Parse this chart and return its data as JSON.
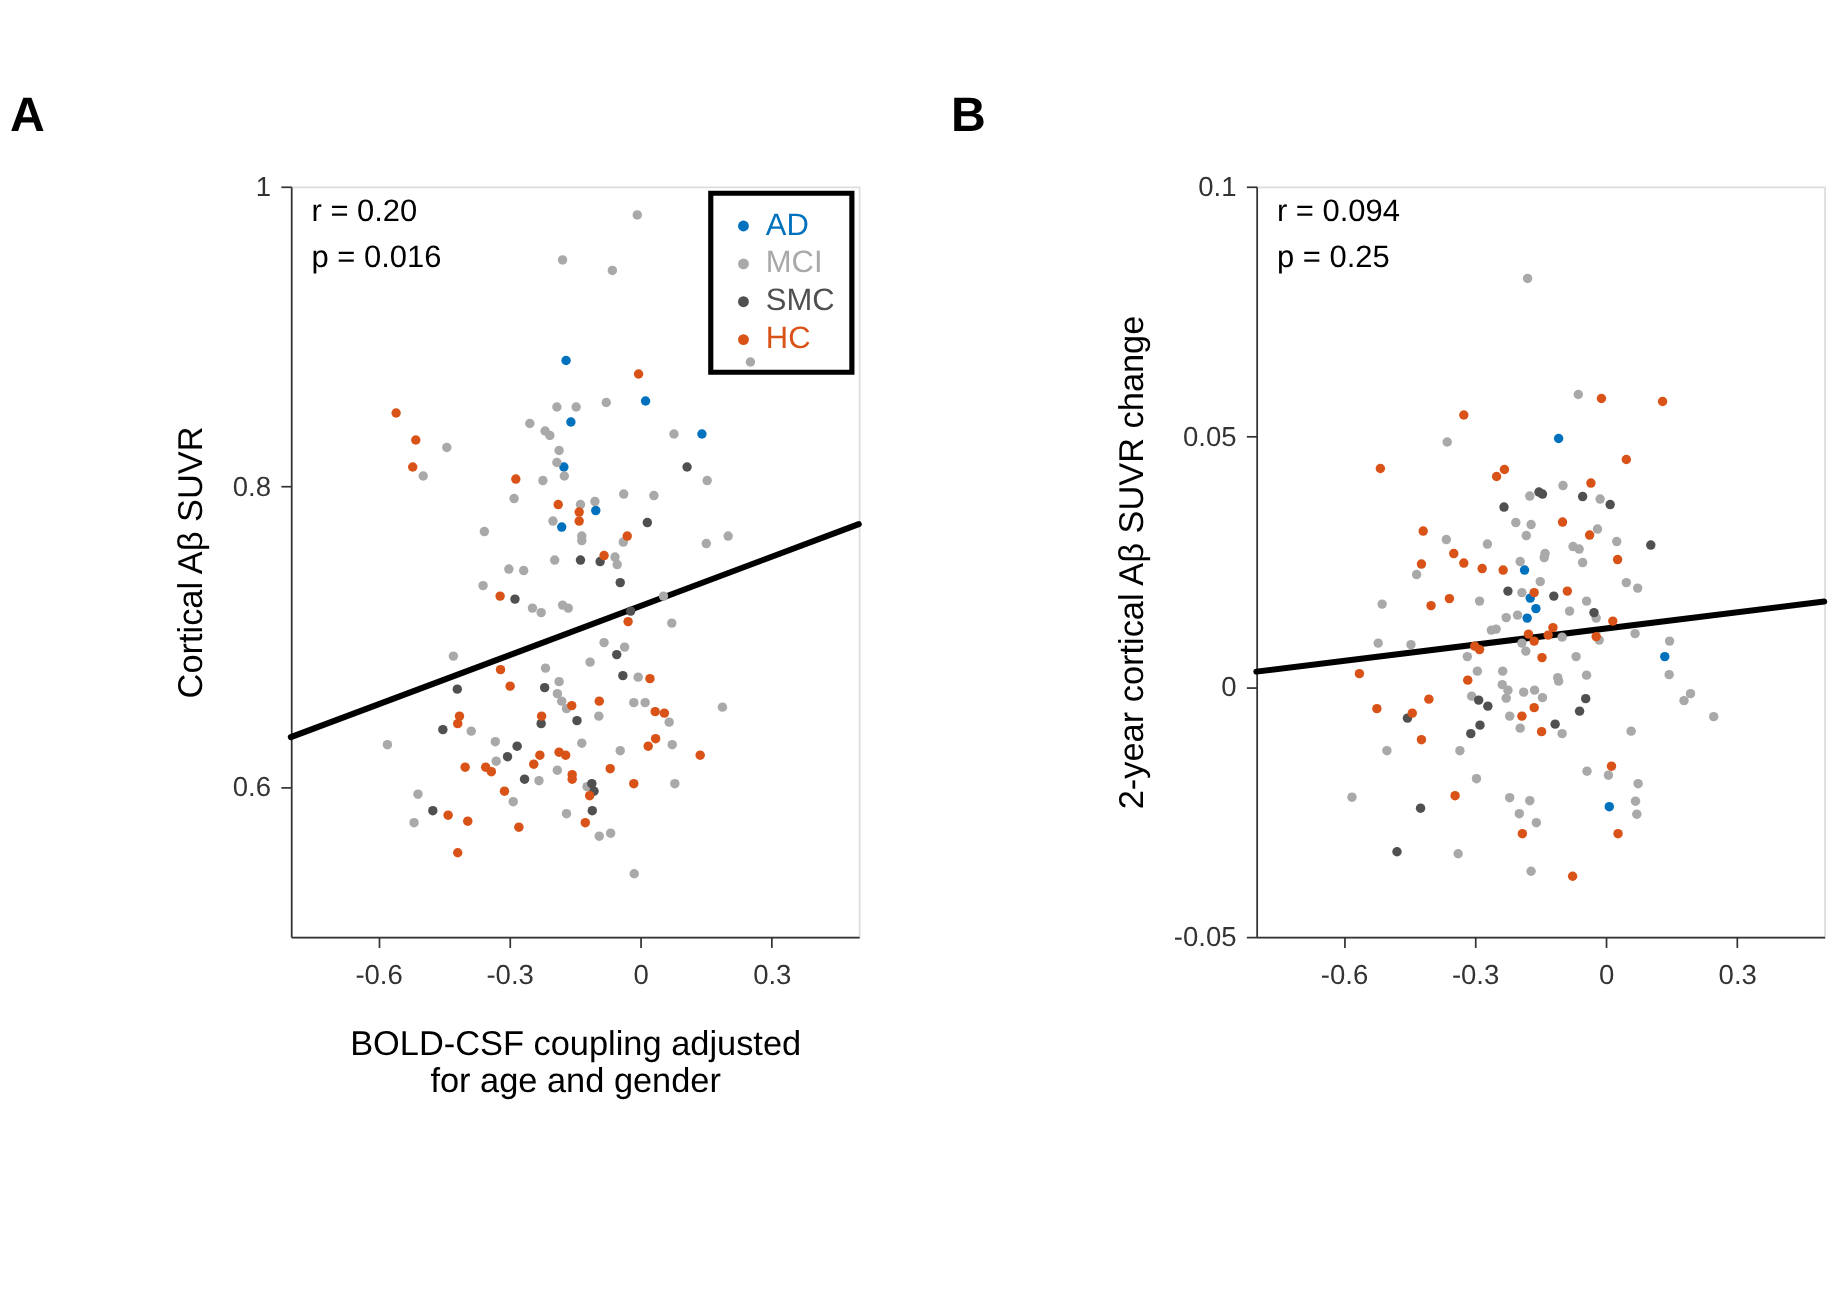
{
  "chart_data": [
    {
      "type": "scatter",
      "title": "A",
      "xlabel": "BOLD-CSF coupling adjusted for age and gender",
      "ylabel": "Cortical Aβ SUVR",
      "annotations": [
        "r = 0.20",
        "p = 0.016"
      ],
      "xlim": [
        -0.8,
        0.5
      ],
      "ylim": [
        0.5,
        1
      ],
      "xticks": [
        -0.6,
        -0.3,
        0,
        0.3
      ],
      "yticks": [
        0.6,
        0.8,
        1
      ],
      "grid": false,
      "legend": "top right",
      "marker": "circle",
      "series": [
        {
          "name": "AD",
          "color": "#0072bd",
          "x": [
            -0.17,
            0.012,
            -0.159,
            0.141,
            -0.175,
            -0.102,
            -0.18
          ],
          "values": [
            0.884,
            0.857,
            0.843,
            0.835,
            0.813,
            0.784,
            0.773
          ]
        },
        {
          "name": "MCI",
          "color": "#a9a9a9",
          "x": [
            -0.007,
            -0.178,
            -0.064,
            0.252,
            -0.191,
            -0.147,
            -0.078,
            -0.253,
            -0.218,
            -0.207,
            -0.443,
            -0.186,
            0.077,
            -0.191,
            -0.497,
            -0.174,
            0.153,
            -0.223,
            -0.289,
            -0.038,
            0.031,
            -0.137,
            -0.104,
            -0.2,
            -0.134,
            -0.134,
            -0.039,
            -0.357,
            0.151,
            0.201,
            -0.196,
            -0.058,
            -0.053,
            -0.301,
            -0.267,
            -0.36,
            -0.247,
            -0.227,
            -0.178,
            -0.165,
            0.053,
            0.072,
            -0.083,
            -0.036,
            -0.428,
            -0.115,
            -0.217,
            -0.005,
            -0.186,
            -0.19,
            -0.18,
            -0.169,
            -0.015,
            0.011,
            0.188,
            -0.387,
            -0.095,
            0.066,
            -0.579,
            -0.332,
            -0.33,
            -0.134,
            0.073,
            -0.046,
            -0.19,
            -0.232,
            -0.122,
            0.079,
            -0.509,
            -0.291,
            -0.518,
            -0.169,
            -0.094,
            -0.068,
            -0.014
          ],
          "values": [
            0.981,
            0.951,
            0.944,
            0.883,
            0.853,
            0.853,
            0.856,
            0.842,
            0.837,
            0.834,
            0.826,
            0.824,
            0.835,
            0.816,
            0.807,
            0.807,
            0.804,
            0.804,
            0.792,
            0.795,
            0.794,
            0.788,
            0.79,
            0.777,
            0.767,
            0.764,
            0.763,
            0.77,
            0.762,
            0.767,
            0.751,
            0.753,
            0.748,
            0.745,
            0.744,
            0.734,
            0.719,
            0.716,
            0.721,
            0.719,
            0.727,
            0.709,
            0.696,
            0.693,
            0.687,
            0.683,
            0.679,
            0.673,
            0.67,
            0.662,
            0.657,
            0.652,
            0.656,
            0.656,
            0.653,
            0.637,
            0.647,
            0.643,
            0.628,
            0.63,
            0.617,
            0.629,
            0.628,
            0.624,
            0.611,
            0.604,
            0.6,
            0.602,
            0.595,
            0.59,
            0.576,
            0.582,
            0.567,
            0.569,
            0.542
          ]
        },
        {
          "name": "SMC",
          "color": "#505050",
          "x": [
            0.107,
            0.016,
            -0.137,
            -0.092,
            -0.046,
            -0.287,
            -0.022,
            -0.054,
            -0.04,
            -0.419,
            -0.219,
            -0.452,
            -0.227,
            -0.145,
            -0.282,
            -0.304,
            -0.265,
            -0.111,
            -0.106,
            -0.475,
            -0.11
          ],
          "values": [
            0.813,
            0.776,
            0.751,
            0.75,
            0.736,
            0.725,
            0.717,
            0.688,
            0.674,
            0.665,
            0.666,
            0.638,
            0.642,
            0.644,
            0.627,
            0.62,
            0.605,
            0.602,
            0.597,
            0.584,
            0.584
          ]
        },
        {
          "name": "HC",
          "color": "#d95319",
          "x": [
            -0.004,
            -0.559,
            -0.514,
            -0.521,
            -0.285,
            -0.188,
            -0.14,
            -0.14,
            -0.03,
            -0.083,
            -0.321,
            -0.028,
            -0.32,
            0.022,
            -0.298,
            -0.157,
            -0.094,
            -0.414,
            -0.418,
            -0.226,
            0.034,
            0.055,
            -0.23,
            -0.186,
            -0.171,
            0.035,
            0.018,
            0.137,
            -0.401,
            -0.354,
            -0.341,
            -0.244,
            -0.156,
            -0.156,
            -0.069,
            -0.116,
            -0.015,
            -0.311,
            -0.44,
            -0.395,
            -0.278,
            -0.126,
            -0.418
          ],
          "values": [
            0.875,
            0.849,
            0.831,
            0.813,
            0.805,
            0.788,
            0.783,
            0.777,
            0.767,
            0.754,
            0.727,
            0.71,
            0.678,
            0.672,
            0.667,
            0.654,
            0.657,
            0.647,
            0.642,
            0.647,
            0.65,
            0.649,
            0.621,
            0.623,
            0.621,
            0.632,
            0.627,
            0.621,
            0.613,
            0.613,
            0.61,
            0.615,
            0.608,
            0.605,
            0.612,
            0.594,
            0.602,
            0.597,
            0.581,
            0.577,
            0.573,
            0.576,
            0.556
          ]
        },
        {
          "type": "line",
          "color": "#000000",
          "marker": "none",
          "line_style": "solid",
          "x": [
            -0.8,
            0.5
          ],
          "values": [
            0.633,
            0.775
          ]
        }
      ]
    },
    {
      "type": "scatter",
      "title": "B",
      "ylabel": "2-year cortical Aβ SUVR change",
      "annotations": [
        "r = 0.094",
        "p = 0.25"
      ],
      "xlim": [
        -0.8,
        0.5
      ],
      "ylim": [
        -0.05,
        0.1
      ],
      "xticks": [
        -0.6,
        -0.3,
        0,
        0.3
      ],
      "yticks": [
        -0.05,
        0,
        0.05,
        0.1
      ],
      "grid": false,
      "marker": "circle",
      "series": [
        {
          "color": "#0072bd",
          "x": [
            -0.108,
            -0.186,
            -0.173,
            -0.16,
            -0.18,
            0.135,
            0.008
          ],
          "values": [
            0.0496,
            0.0233,
            0.0177,
            0.0156,
            0.0137,
            0.006,
            -0.024
          ]
        },
        {
          "color": "#a9a9a9",
          "x": [
            -0.179,
            -0.063,
            -0.363,
            -0.174,
            -0.098,
            -0.013,
            -0.206,
            -0.171,
            -0.182,
            -0.019,
            -0.365,
            -0.271,
            0.025,
            -0.139,
            -0.141,
            -0.075,
            -0.061,
            -0.196,
            -0.053,
            -0.433,
            0.047,
            0.073,
            -0.192,
            -0.15,
            -0.202,
            -0.228,
            -0.512,
            -0.289,
            -0.044,
            -0.083,
            -0.022,
            -0.251,
            -0.262,
            -0.192,
            -0.183,
            -0.1,
            0.067,
            0.146,
            -0.015,
            -0.521,
            -0.446,
            -0.317,
            -0.068,
            -0.294,
            -0.236,
            -0.11,
            -0.108,
            -0.044,
            0.145,
            -0.237,
            -0.224,
            -0.228,
            -0.188,
            -0.163,
            -0.145,
            -0.307,
            0.194,
            0.179,
            0.247,
            -0.22,
            -0.196,
            -0.1,
            0.058,
            -0.501,
            -0.334,
            -0.043,
            0.006,
            -0.296,
            0.074,
            -0.581,
            -0.22,
            -0.174,
            0.068,
            0.071,
            -0.198,
            -0.159,
            -0.338,
            -0.171
          ],
          "values": [
            0.0816,
            0.0584,
            0.0489,
            0.0381,
            0.0402,
            0.0375,
            0.0328,
            0.0324,
            0.0302,
            0.0315,
            0.0294,
            0.0285,
            0.029,
            0.0266,
            0.0258,
            0.028,
            0.0275,
            0.025,
            0.0248,
            0.0224,
            0.0208,
            0.0197,
            0.0188,
            0.021,
            0.0143,
            0.0138,
            0.0165,
            0.0171,
            0.0171,
            0.0151,
            0.0137,
            0.0115,
            0.0113,
            0.0087,
            0.0071,
            0.0099,
            0.0106,
            0.0091,
            0.0093,
            0.0087,
            0.0084,
            0.006,
            0.006,
            0.0031,
            0.0031,
            0.0018,
            0.0011,
            0.0023,
            0.0024,
            0.0004,
            -0.0007,
            -0.0023,
            -0.0011,
            -0.0007,
            -0.0022,
            -0.0019,
            -0.0014,
            -0.0028,
            -0.006,
            -0.0059,
            -0.0083,
            -0.0094,
            -0.0089,
            -0.0128,
            -0.0128,
            -0.0169,
            -0.0177,
            -0.0184,
            -0.0194,
            -0.0221,
            -0.0222,
            -0.0228,
            -0.0229,
            -0.0255,
            -0.0254,
            -0.0272,
            -0.0334,
            -0.0369
          ]
        },
        {
          "color": "#505050",
          "x": [
            -0.153,
            -0.145,
            -0.053,
            0.01,
            -0.233,
            0.103,
            -0.224,
            -0.119,
            -0.027,
            -0.291,
            -0.27,
            -0.046,
            -0.06,
            -0.454,
            -0.288,
            -0.309,
            -0.116,
            -0.424,
            -0.478
          ],
          "values": [
            0.0389,
            0.0385,
            0.038,
            0.0364,
            0.0359,
            0.0283,
            0.0191,
            0.0181,
            0.0148,
            -0.0027,
            -0.0039,
            -0.0024,
            -0.0049,
            -0.0063,
            -0.0077,
            -0.0094,
            -0.0075,
            -0.0243,
            -0.033
          ]
        },
        {
          "color": "#d95319",
          "x": [
            -0.01,
            0.13,
            -0.325,
            -0.516,
            0.047,
            -0.232,
            -0.25,
            -0.034,
            -0.099,
            -0.418,
            -0.037,
            -0.348,
            0.027,
            -0.422,
            -0.325,
            -0.283,
            -0.235,
            -0.164,
            -0.088,
            -0.4,
            -0.358,
            0.016,
            -0.121,
            -0.132,
            -0.177,
            -0.164,
            -0.022,
            -0.3,
            -0.289,
            -0.146,
            -0.564,
            -0.316,
            -0.405,
            -0.524,
            -0.443,
            -0.192,
            -0.164,
            -0.147,
            -0.422,
            0.013,
            -0.345,
            -0.191,
            0.028,
            -0.076
          ],
          "values": [
            0.0576,
            0.057,
            0.0543,
            0.0436,
            0.0454,
            0.0434,
            0.042,
            0.0407,
            0.0329,
            0.0311,
            0.0303,
            0.0266,
            0.0254,
            0.0245,
            0.0247,
            0.0236,
            0.0233,
            0.0188,
            0.0191,
            0.0162,
            0.0176,
            0.0131,
            0.0118,
            0.0103,
            0.0105,
            0.0091,
            0.01,
            0.0081,
            0.0074,
            0.0058,
            0.0026,
            0.0013,
            -0.0025,
            -0.0044,
            -0.0053,
            -0.0059,
            -0.0042,
            -0.009,
            -0.0106,
            -0.0159,
            -0.0218,
            -0.0294,
            -0.0294,
            -0.0379
          ]
        },
        {
          "type": "line",
          "color": "#000000",
          "marker": "none",
          "line_style": "solid",
          "x": [
            -0.8,
            0.5
          ],
          "values": [
            0.003,
            0.017
          ]
        }
      ]
    }
  ]
}
